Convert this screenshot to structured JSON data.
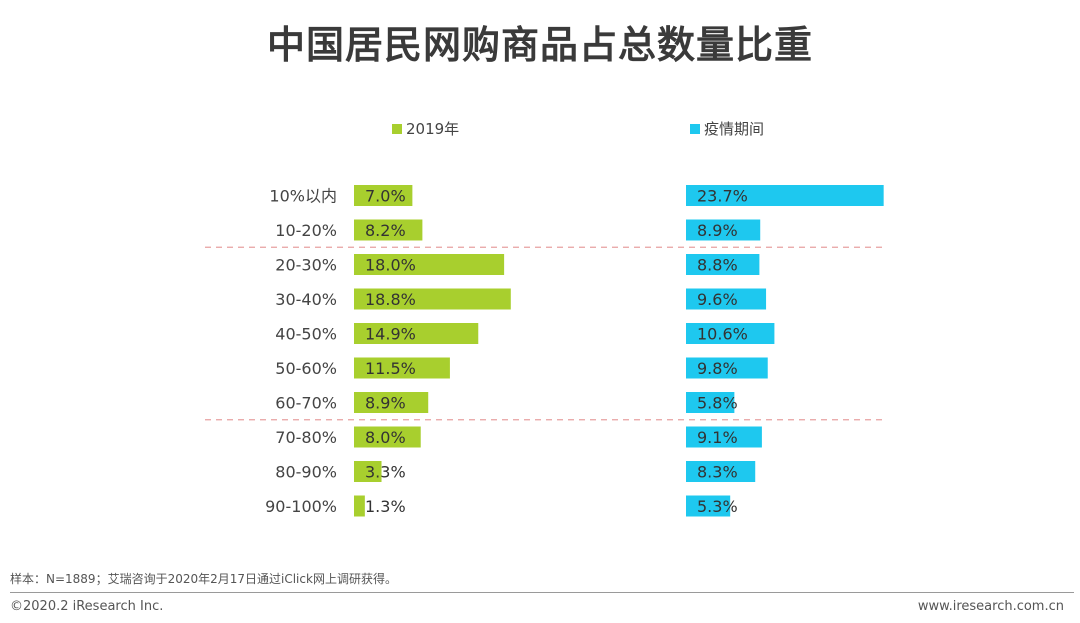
{
  "title": "中国居民网购商品占总数量比重",
  "chart_data": {
    "type": "bar",
    "orientation": "horizontal",
    "categories": [
      "10%以内",
      "10-20%",
      "20-30%",
      "30-40%",
      "40-50%",
      "50-60%",
      "60-70%",
      "70-80%",
      "80-90%",
      "90-100%"
    ],
    "series": [
      {
        "name": "2019年",
        "color": "#a8cf2e",
        "values": [
          7.0,
          8.2,
          18.0,
          18.8,
          14.9,
          11.5,
          8.9,
          8.0,
          3.3,
          1.3
        ],
        "labels": [
          "7.0%",
          "8.2%",
          "18.0%",
          "18.8%",
          "14.9%",
          "11.5%",
          "8.9%",
          "8.0%",
          "3.3%",
          "1.3%"
        ]
      },
      {
        "name": "疫情期间",
        "color": "#1ec8ef",
        "values": [
          23.7,
          8.9,
          8.8,
          9.6,
          10.6,
          9.8,
          5.8,
          9.1,
          8.3,
          5.3
        ],
        "labels": [
          "23.7%",
          "8.9%",
          "8.8%",
          "9.6%",
          "10.6%",
          "9.8%",
          "5.8%",
          "9.1%",
          "8.3%",
          "5.3%"
        ]
      }
    ],
    "group_separators_after": [
      "10-20%",
      "60-70%"
    ],
    "separator_color": "#e8a0a0"
  },
  "footer": {
    "note": "样本：N=1889；艾瑞咨询于2020年2月17日通过iClick网上调研获得。",
    "copyright": "©2020.2 iResearch Inc.",
    "website": "www.iresearch.com.cn"
  }
}
